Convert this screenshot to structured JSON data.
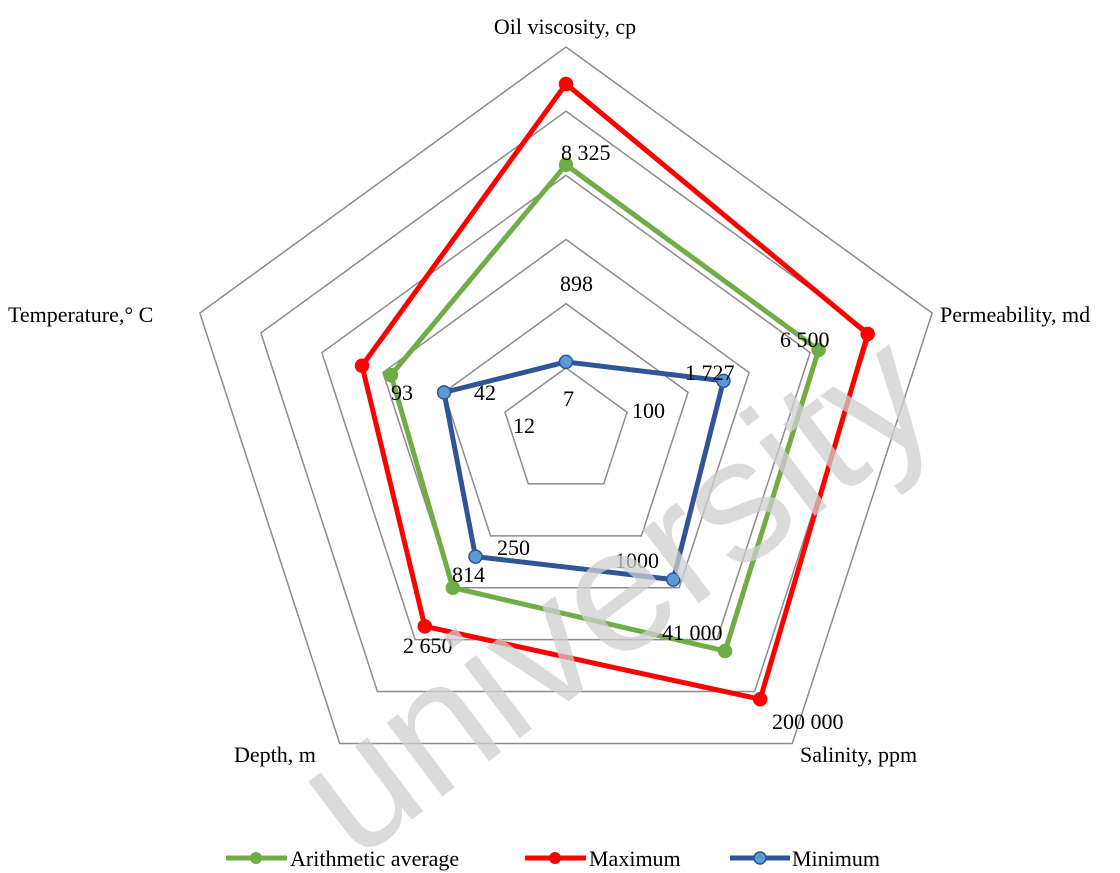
{
  "chart_data": {
    "type": "radar",
    "axes": [
      "Oil viscosity, cp",
      "Permeability, md",
      "Salinity, ppm",
      "Depth, m",
      "Temperature,° C"
    ],
    "rings": 6,
    "series": [
      {
        "name": "Arithmetic average",
        "color": "#70ad47",
        "marker_color": "#70ad47",
        "levels": [
          0.694,
          0.69,
          0.703,
          0.5,
          0.478
        ],
        "labels": [
          "898",
          "1 727",
          "41 000",
          "814",
          "42"
        ]
      },
      {
        "name": "Maximum",
        "color": "#ff0000",
        "marker_color": "#ff0000",
        "levels": [
          0.904,
          0.824,
          0.858,
          0.624,
          0.557
        ],
        "labels": [
          "8 325",
          "6 500",
          "200 000",
          "2 650",
          "93"
        ]
      },
      {
        "name": "Minimum",
        "color": "#2f5597",
        "marker_color": "#5b9bd5",
        "levels": [
          0.182,
          0.43,
          0.474,
          0.4,
          0.333
        ],
        "labels": [
          "7",
          "100",
          "1000",
          "250",
          "12"
        ]
      }
    ]
  },
  "watermark": "university"
}
